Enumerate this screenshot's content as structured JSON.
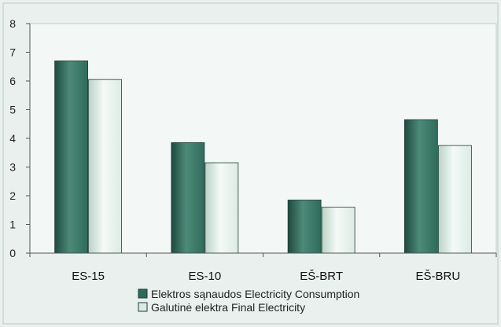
{
  "colors": {
    "background": "#e9f0ee",
    "plot_area": "#f3f8f6",
    "series_consumption": "#2f6b5b",
    "series_final": "#dcebe4",
    "axis": "#555555",
    "border": "#b9cbc5"
  },
  "chart_data": {
    "type": "bar",
    "categories": [
      "ES-15",
      "ES-10",
      "EŠ-BRT",
      "EŠ-BRU"
    ],
    "series": [
      {
        "name": "Elektros sąnaudos Electricity Consumption",
        "values": [
          6.7,
          3.85,
          1.85,
          4.65
        ]
      },
      {
        "name": "Galutinė elektra  Final Electricity",
        "values": [
          6.05,
          3.15,
          1.6,
          3.75
        ]
      }
    ],
    "yticks": [
      "0",
      "1",
      "2",
      "3",
      "4",
      "5",
      "6",
      "7",
      "8"
    ],
    "ylim": [
      0,
      8
    ],
    "grid": false,
    "legend": "bottom-center",
    "title": "",
    "xlabel": "",
    "ylabel": ""
  }
}
